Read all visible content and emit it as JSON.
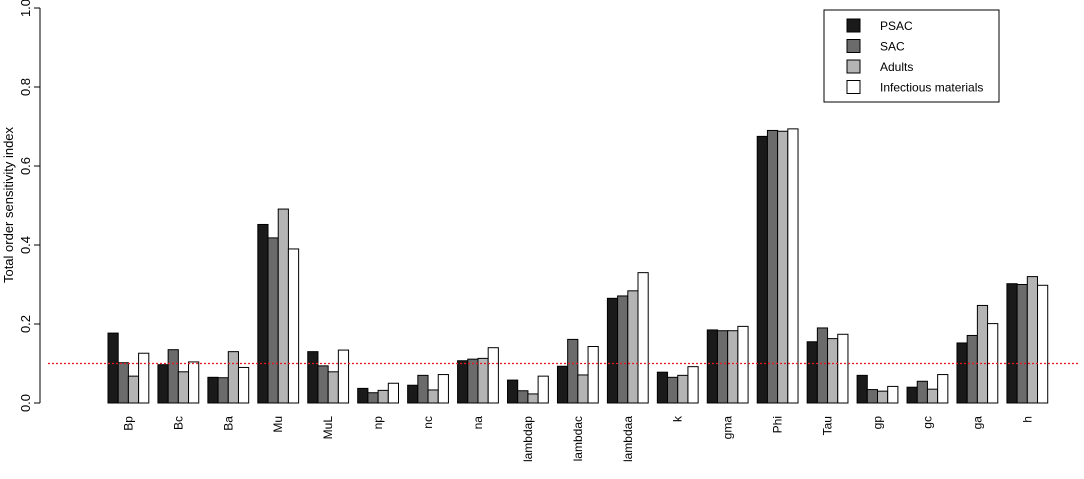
{
  "chart_data": {
    "type": "bar",
    "title": "",
    "xlabel": "",
    "ylabel": "Total order sensitivity index",
    "ylim": [
      0,
      1.0
    ],
    "yticks": [
      "0.0",
      "0.2",
      "0.4",
      "0.6",
      "0.8",
      "1.0"
    ],
    "reference_line": {
      "value": 0.1,
      "color": "#e31a1c",
      "style": "dotted"
    },
    "grid": false,
    "legend_position": "top-right",
    "categories": [
      "Bp",
      "Bc",
      "Ba",
      "Mu",
      "MuL",
      "np",
      "nc",
      "na",
      "lambdap",
      "lambdac",
      "lambdaa",
      "k",
      "gma",
      "Phi",
      "Tau",
      "gp",
      "gc",
      "ga",
      "h"
    ],
    "series": [
      {
        "name": "PSAC",
        "color": "#1a1a1a",
        "values": [
          0.177,
          0.097,
          0.065,
          0.452,
          0.13,
          0.037,
          0.045,
          0.107,
          0.058,
          0.093,
          0.265,
          0.078,
          0.185,
          0.675,
          0.155,
          0.07,
          0.04,
          0.152,
          0.302
        ]
      },
      {
        "name": "SAC",
        "color": "#6b6b6b",
        "values": [
          0.102,
          0.135,
          0.064,
          0.418,
          0.094,
          0.026,
          0.07,
          0.111,
          0.031,
          0.161,
          0.271,
          0.065,
          0.183,
          0.69,
          0.19,
          0.034,
          0.055,
          0.171,
          0.3
        ]
      },
      {
        "name": "Adults",
        "color": "#b4b4b4",
        "values": [
          0.068,
          0.079,
          0.13,
          0.491,
          0.079,
          0.032,
          0.033,
          0.113,
          0.023,
          0.071,
          0.284,
          0.07,
          0.183,
          0.688,
          0.163,
          0.03,
          0.035,
          0.247,
          0.32
        ]
      },
      {
        "name": "Infectious materials",
        "color": "#ffffff",
        "values": [
          0.126,
          0.104,
          0.09,
          0.39,
          0.134,
          0.05,
          0.072,
          0.14,
          0.068,
          0.143,
          0.33,
          0.092,
          0.194,
          0.694,
          0.174,
          0.042,
          0.072,
          0.201,
          0.298
        ]
      }
    ]
  }
}
